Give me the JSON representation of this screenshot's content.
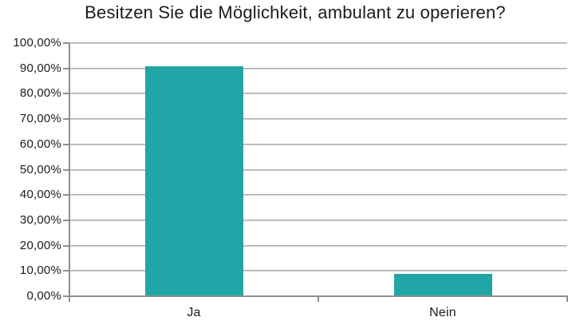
{
  "chart_data": {
    "type": "bar",
    "title": "Besitzen Sie die Möglichkeit, ambulant zu operieren?",
    "categories": [
      "Ja",
      "Nein"
    ],
    "values": [
      91.0,
      8.8
    ],
    "xlabel": "",
    "ylabel": "",
    "ylim": [
      0,
      100
    ],
    "ytick_step": 10,
    "ytick_labels_bottom_to_top": [
      "0,00%",
      "10,00%",
      "20,00%",
      "30,00%",
      "40,00%",
      "50,00%",
      "60,00%",
      "70,00%",
      "80,00%",
      "90,00%",
      "100,00%"
    ],
    "grid": true,
    "legend": false,
    "number_format": "percent-german-decimal-comma"
  },
  "colors": {
    "bar": "#22a5a6",
    "gridline_dark": "#9c9c9c",
    "gridline_light": "#e0e0e0",
    "axis": "#8f8f8f",
    "text": "#1b1b1b",
    "background": "#ffffff"
  }
}
